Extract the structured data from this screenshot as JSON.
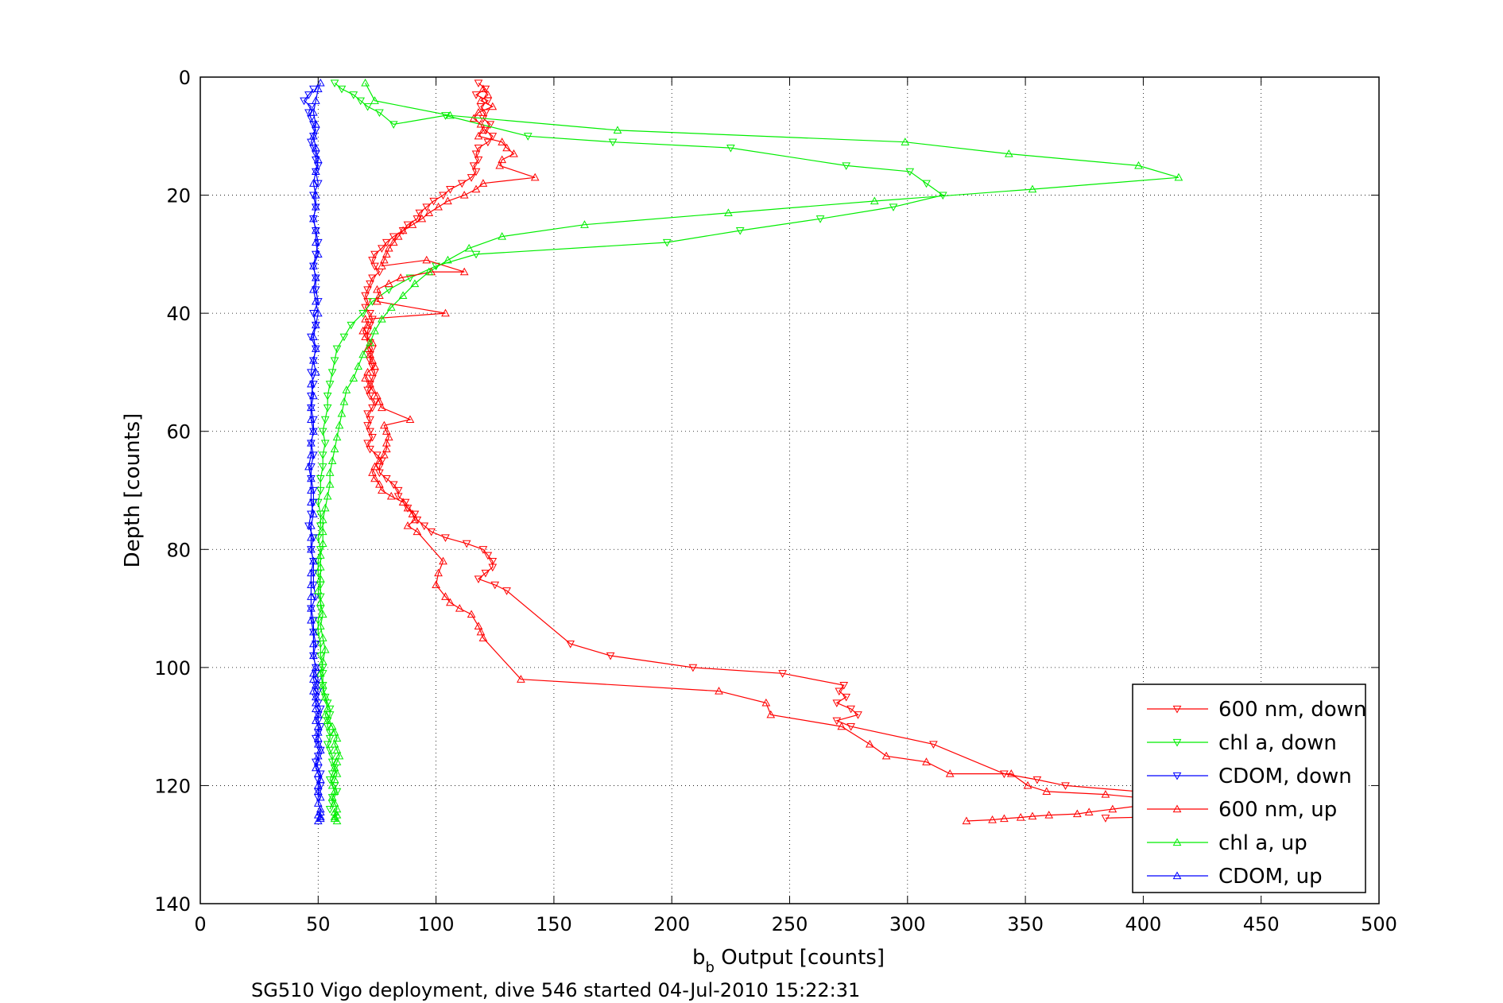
{
  "caption": "SG510 Vigo deployment, dive 546 started 04-Jul-2010 15:22:31",
  "chart_data": {
    "type": "line",
    "xlabel_main": "b",
    "xlabel_sub": "b",
    "xlabel_rest": " Output [counts]",
    "ylabel": "Depth [counts]",
    "xlim": [
      0,
      500
    ],
    "ylim": [
      0,
      140
    ],
    "y_reversed": true,
    "grid": true,
    "x_ticks": [
      0,
      50,
      100,
      150,
      200,
      250,
      300,
      350,
      400,
      450,
      500
    ],
    "y_ticks": [
      0,
      20,
      40,
      60,
      80,
      100,
      120,
      140
    ],
    "legend_position": "bottom-right",
    "series": [
      {
        "name": "600 nm, down",
        "color": "#ff0000",
        "marker": "triangle-down",
        "x": [
          118,
          121,
          117,
          122,
          119,
          121,
          120,
          123,
          121,
          124,
          122,
          118,
          117,
          118,
          116,
          117,
          115,
          111,
          106,
          103,
          99,
          96,
          93,
          92,
          88,
          86,
          82,
          79,
          77,
          74,
          73,
          74,
          76,
          73,
          72,
          71,
          70,
          71,
          70,
          72,
          73,
          72,
          71,
          71,
          72,
          73,
          72,
          72,
          73,
          74,
          73,
          72,
          71,
          72,
          74,
          73,
          71,
          72,
          71,
          72,
          73,
          71,
          72,
          75,
          77,
          76,
          76,
          79,
          82,
          84,
          84,
          87,
          88,
          91,
          92,
          95,
          98,
          104,
          113,
          120,
          122,
          124,
          124,
          121,
          118,
          125,
          130,
          157,
          174,
          209,
          247,
          273,
          271,
          274,
          270,
          276,
          279,
          270,
          276,
          311,
          341,
          355,
          367,
          398,
          402,
          410,
          414,
          417,
          414,
          405,
          384
        ],
        "y": [
          1,
          2,
          3,
          4,
          5,
          6,
          7,
          8,
          9,
          10,
          11,
          12,
          13,
          14,
          15,
          16,
          17,
          18,
          19,
          20,
          21,
          22,
          23,
          24,
          25,
          26,
          27,
          28,
          29,
          30,
          31,
          32,
          33,
          34,
          35,
          36,
          37,
          38,
          39,
          40,
          41,
          42,
          43,
          44,
          45,
          46,
          47,
          48,
          49,
          50,
          51,
          52,
          53,
          54,
          55,
          56,
          57,
          58,
          59,
          60,
          61,
          62,
          63,
          64,
          65,
          66,
          67,
          68,
          69,
          70,
          71,
          72,
          73,
          74,
          75,
          76,
          77,
          78,
          79,
          80,
          81,
          82,
          83,
          84,
          85,
          86,
          87,
          96,
          98,
          100,
          101,
          103,
          104,
          105,
          106,
          107,
          108,
          109,
          110,
          113,
          118,
          119,
          120,
          121,
          122,
          123,
          124,
          124.5,
          125,
          125.3,
          125.5
        ]
      },
      {
        "name": "chl a, down",
        "color": "#00ee00",
        "marker": "triangle-down",
        "x": [
          57,
          60,
          65,
          68,
          71,
          76,
          82,
          104,
          139,
          175,
          225,
          274,
          301,
          308,
          315,
          294,
          263,
          229,
          198,
          117,
          100,
          89,
          80,
          73,
          69,
          64,
          61,
          58,
          57,
          56,
          55,
          54,
          54,
          53,
          52,
          53,
          52,
          52,
          51,
          51,
          50,
          51,
          51,
          50,
          51,
          50,
          50,
          51,
          51,
          51,
          50,
          50,
          51,
          51,
          52,
          52,
          52,
          52,
          53,
          54,
          55,
          55,
          54,
          54,
          55,
          55,
          54,
          55,
          56,
          56,
          57,
          56,
          55,
          57,
          58,
          56,
          56,
          55
        ],
        "y": [
          1,
          2,
          3,
          4,
          5,
          6,
          8,
          6.5,
          10,
          11,
          12,
          15,
          16,
          18,
          20,
          22,
          24,
          26,
          28,
          30,
          32,
          34,
          36,
          38,
          40,
          42,
          44,
          46,
          48,
          50,
          52,
          54,
          56,
          58,
          60,
          62,
          64,
          66,
          68,
          70,
          72,
          74,
          76,
          78,
          80,
          82,
          84,
          86,
          88,
          90,
          92,
          94,
          96,
          98,
          100,
          101,
          103,
          104,
          105,
          106,
          107,
          108,
          109,
          110,
          111,
          112,
          113,
          114,
          115,
          116,
          117,
          118,
          119,
          120,
          121,
          122,
          123,
          124
        ]
      },
      {
        "name": "CDOM, down",
        "color": "#0000ff",
        "marker": "triangle-down",
        "x": [
          48,
          46,
          44,
          47,
          46,
          47,
          48,
          49,
          48,
          47,
          48,
          49,
          49,
          50,
          49,
          50,
          48,
          49,
          48,
          49,
          50,
          49,
          48,
          49,
          49,
          50,
          48,
          49,
          47,
          49,
          48,
          47,
          48,
          47,
          47,
          48,
          48,
          47,
          48,
          47,
          47,
          48,
          48,
          47,
          46,
          48,
          47,
          48,
          48,
          48,
          49,
          47,
          48,
          48,
          49,
          48,
          49,
          49,
          50,
          49,
          50,
          49,
          50,
          51,
          50,
          50,
          51,
          50,
          49,
          50,
          51,
          50,
          49,
          50,
          51,
          50,
          51,
          50,
          50
        ],
        "y": [
          2,
          3,
          4,
          5,
          6,
          7,
          8,
          9,
          10,
          11,
          12,
          13,
          14,
          15,
          16,
          18,
          20,
          22,
          24,
          26,
          28,
          30,
          32,
          34,
          36,
          38,
          40,
          42,
          44,
          46,
          48,
          50,
          52,
          54,
          56,
          58,
          60,
          62,
          64,
          66,
          68,
          70,
          72,
          74,
          76,
          78,
          80,
          82,
          84,
          86,
          88,
          90,
          92,
          94,
          96,
          98,
          100,
          101,
          102,
          103,
          104,
          105,
          106,
          107,
          108,
          109,
          110,
          111,
          112,
          113,
          114,
          115,
          116,
          117,
          118,
          119,
          120,
          121,
          122
        ]
      },
      {
        "name": "600 nm, up",
        "color": "#ff0000",
        "marker": "triangle-up",
        "x": [
          120,
          122,
          119,
          124,
          118,
          116,
          119,
          120,
          118,
          128,
          130,
          133,
          128,
          127,
          142,
          120,
          117,
          112,
          105,
          101,
          97,
          94,
          90,
          86,
          84,
          82,
          80,
          79,
          78,
          77,
          96,
          112,
          98,
          85,
          80,
          75,
          76,
          75,
          104,
          70,
          71,
          69,
          70,
          73,
          71,
          72,
          73,
          74,
          71,
          70,
          72,
          73,
          75,
          76,
          77,
          89,
          78,
          79,
          80,
          79,
          79,
          78,
          76,
          74,
          73,
          74,
          76,
          77,
          81,
          86,
          88,
          90,
          91,
          88,
          92,
          103,
          101,
          100,
          104,
          106,
          110,
          115,
          118,
          119,
          120,
          136,
          220,
          240,
          242,
          272,
          284,
          291,
          308,
          318,
          344,
          351,
          359,
          384,
          397,
          406,
          409,
          397,
          387,
          377,
          372,
          360,
          353,
          348,
          341,
          336,
          325
        ],
        "y": [
          2,
          3,
          4,
          5,
          6,
          7,
          8,
          9,
          10,
          11,
          12,
          13,
          14,
          15,
          17,
          18,
          19,
          20,
          21,
          22,
          23,
          24,
          25,
          26,
          27,
          28,
          29,
          30,
          31,
          32,
          31,
          33,
          33,
          34,
          35,
          36,
          37,
          38,
          40,
          41,
          42,
          43,
          44,
          45,
          46,
          47,
          48,
          49,
          50,
          51,
          52,
          53,
          54,
          55,
          56,
          58,
          59,
          60,
          61,
          62,
          63,
          64,
          65,
          66,
          67,
          68,
          69,
          70,
          71,
          72,
          73,
          74,
          75,
          76,
          77,
          82,
          84,
          86,
          88,
          89,
          90,
          91,
          93,
          94,
          95,
          102,
          104,
          106,
          108,
          110,
          113,
          115,
          116,
          118,
          118,
          120,
          121,
          121.5,
          122,
          122.5,
          123,
          123.5,
          124,
          124.5,
          124.8,
          125,
          125.2,
          125.4,
          125.6,
          125.8,
          126
        ]
      },
      {
        "name": "chl a, up",
        "color": "#00ee00",
        "marker": "triangle-up",
        "x": [
          70,
          74,
          106,
          177,
          299,
          343,
          398,
          415,
          353,
          286,
          224,
          163,
          128,
          114,
          105,
          97,
          91,
          86,
          81,
          77,
          74,
          72,
          69,
          67,
          65,
          62,
          61,
          60,
          59,
          58,
          57,
          56,
          55,
          55,
          54,
          53,
          52,
          52,
          52,
          51,
          51,
          51,
          50,
          51,
          52,
          51,
          52,
          53,
          52,
          51,
          52,
          53,
          54,
          53,
          54,
          56,
          57,
          58,
          57,
          58,
          59,
          58,
          57,
          58,
          57,
          56,
          57,
          56,
          57,
          58,
          57,
          58,
          57,
          57,
          58
        ],
        "y": [
          1,
          4,
          6.5,
          9,
          11,
          13,
          15,
          17,
          19,
          21,
          23,
          25,
          27,
          29,
          31,
          33,
          35,
          37,
          39,
          41,
          43,
          45,
          47,
          49,
          51,
          53,
          55,
          57,
          59,
          61,
          63,
          65,
          67,
          69,
          71,
          73,
          75,
          77,
          79,
          81,
          83,
          85,
          87,
          89,
          91,
          93,
          95,
          97,
          99,
          101,
          103,
          105,
          107,
          108,
          109,
          110,
          111,
          112,
          113,
          114,
          115,
          116,
          117,
          118,
          119,
          120,
          121,
          122,
          123,
          124,
          124.5,
          125,
          125.3,
          125.6,
          126
        ]
      },
      {
        "name": "CDOM, up",
        "color": "#0000ff",
        "marker": "triangle-up",
        "x": [
          51,
          50,
          49,
          48,
          49,
          48,
          49,
          50,
          49,
          48,
          49,
          49,
          48,
          49,
          49,
          50,
          48,
          49,
          48,
          49,
          50,
          49,
          48,
          49,
          48,
          49,
          47,
          48,
          47,
          47,
          48,
          47,
          47,
          46,
          47,
          47,
          47,
          48,
          47,
          47,
          47,
          48,
          47,
          47,
          47,
          47,
          47,
          48,
          48,
          48,
          49,
          48,
          48,
          49,
          48,
          49,
          49,
          49,
          50,
          49,
          50,
          50,
          50,
          50,
          51,
          50,
          50,
          49,
          50,
          51,
          50,
          50,
          51,
          50,
          51,
          51,
          50,
          51,
          51,
          50
        ],
        "y": [
          1,
          2,
          4,
          6,
          8,
          10,
          12,
          14,
          16,
          18,
          20,
          22,
          24,
          26,
          28,
          30,
          32,
          34,
          36,
          38,
          40,
          42,
          44,
          46,
          48,
          50,
          52,
          54,
          56,
          58,
          60,
          62,
          64,
          66,
          68,
          70,
          72,
          74,
          76,
          78,
          80,
          82,
          84,
          86,
          88,
          90,
          92,
          94,
          96,
          98,
          100,
          101,
          102,
          103,
          104,
          105,
          106,
          107,
          108,
          109,
          110,
          111,
          112,
          113,
          114,
          115,
          116,
          117,
          118,
          119,
          120,
          121,
          122,
          123,
          124,
          124.5,
          125,
          125.3,
          125.6,
          126
        ]
      }
    ]
  }
}
